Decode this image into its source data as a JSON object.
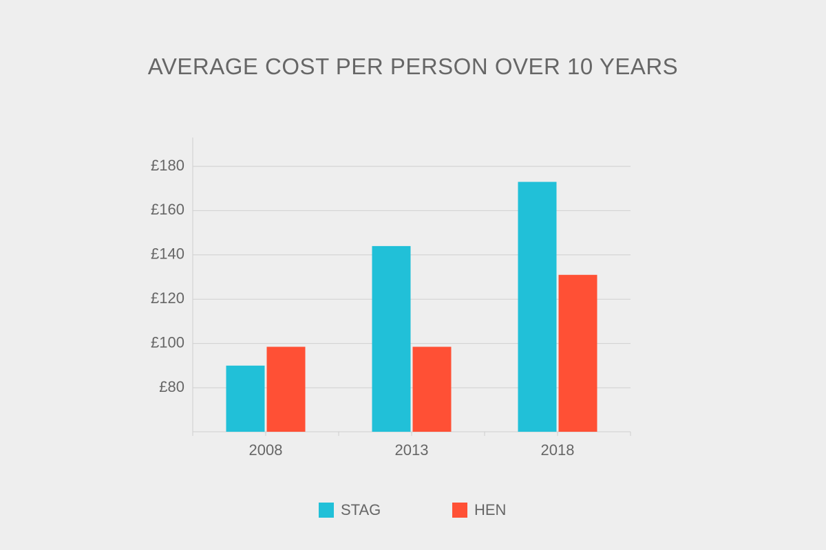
{
  "chart_data": {
    "type": "bar",
    "title": "AVERAGE COST PER PERSON OVER 10 YEARS",
    "xlabel": "",
    "ylabel": "",
    "categories": [
      "2008",
      "2013",
      "2018"
    ],
    "series": [
      {
        "name": "STAG",
        "color": "#21c0d8",
        "values": [
          90,
          144,
          173
        ]
      },
      {
        "name": "HEN",
        "color": "#ff5035",
        "values": [
          98.5,
          98.5,
          131
        ]
      }
    ],
    "ylim": [
      60,
      180
    ],
    "yticks": [
      80,
      100,
      120,
      140,
      160,
      180
    ],
    "ytick_labels": [
      "£80",
      "£100",
      "£120",
      "£140",
      "£160",
      "£180"
    ],
    "grid": true,
    "legend_position": "bottom"
  }
}
